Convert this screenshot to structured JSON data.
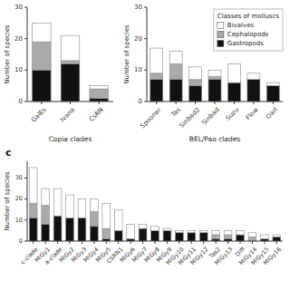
{
  "chart_data": [
    {
      "type": "bar",
      "stacked": true,
      "grid": false,
      "x_label": "Copia clades",
      "y_label": "Number of species",
      "categories": [
        "GalEs",
        "Ivana",
        "CsRN"
      ],
      "series": [
        {
          "name": "Bivalves",
          "color": "#ffffff",
          "values": [
            6,
            8,
            1
          ]
        },
        {
          "name": "Cephalopods",
          "color": "#aaaaaa",
          "values": [
            9,
            1,
            3
          ]
        },
        {
          "name": "Gastropods",
          "color": "#111111",
          "values": [
            10,
            12,
            1
          ]
        }
      ],
      "ylim": [
        0,
        30
      ],
      "yticks": [
        0,
        10,
        20,
        30
      ]
    },
    {
      "type": "bar",
      "stacked": true,
      "grid": false,
      "x_label": "BEL/Pao clades",
      "y_label": "Number of species",
      "legend": "upper right",
      "legend_title": "Classes of molluscs",
      "categories": [
        "Spooner",
        "Tas",
        "Sinbad2",
        "Sinbad",
        "Suzu",
        "Flow",
        "Oarl"
      ],
      "series": [
        {
          "name": "Bivalves",
          "color": "#ffffff",
          "values": [
            8,
            4,
            4,
            2,
            6,
            2,
            1
          ]
        },
        {
          "name": "Cephalopods",
          "color": "#aaaaaa",
          "values": [
            2,
            5,
            2,
            1,
            0,
            0,
            0
          ]
        },
        {
          "name": "Gastropods",
          "color": "#111111",
          "values": [
            7,
            7,
            5,
            7,
            6,
            7,
            5
          ]
        }
      ],
      "ylim": [
        0,
        30
      ],
      "yticks": [
        0,
        10,
        20,
        30
      ]
    },
    {
      "type": "bar",
      "stacked": true,
      "grid": false,
      "title": "c",
      "y_label": "Number of species",
      "categories": [
        "c-clade",
        "MlGy1",
        "a-clade",
        "MlGy2",
        "MlGy3",
        "MlGy4",
        "MlGy5",
        "CSRN1",
        "MlGy6",
        "MlGy7",
        "MlGy8",
        "MlGy9",
        "MlGy10",
        "MlGy11",
        "MlGy12",
        "Tas2",
        "MlGy13",
        "Olff",
        "MlGy14",
        "MlGy15",
        "MlGy16"
      ],
      "series": [
        {
          "name": "Bivalves",
          "color": "#ffffff",
          "values": [
            17,
            8,
            13,
            11,
            9,
            6,
            12,
            10,
            7,
            2,
            2,
            1,
            1,
            1,
            1,
            2,
            2,
            2,
            2,
            2,
            1
          ]
        },
        {
          "name": "Cephalopods",
          "color": "#aaaaaa",
          "values": [
            7,
            9,
            0,
            0,
            0,
            7,
            5,
            0,
            0,
            0,
            0,
            0,
            0,
            0,
            0,
            2,
            2,
            0,
            2,
            0,
            0
          ]
        },
        {
          "name": "Gastropods",
          "color": "#111111",
          "values": [
            11,
            8,
            12,
            11,
            11,
            7,
            1,
            5,
            1,
            6,
            5,
            5,
            4,
            4,
            4,
            1,
            1,
            3,
            0,
            1,
            2
          ]
        }
      ],
      "ylim": [
        0,
        38
      ],
      "yticks": [
        0,
        10,
        20,
        30
      ]
    }
  ]
}
